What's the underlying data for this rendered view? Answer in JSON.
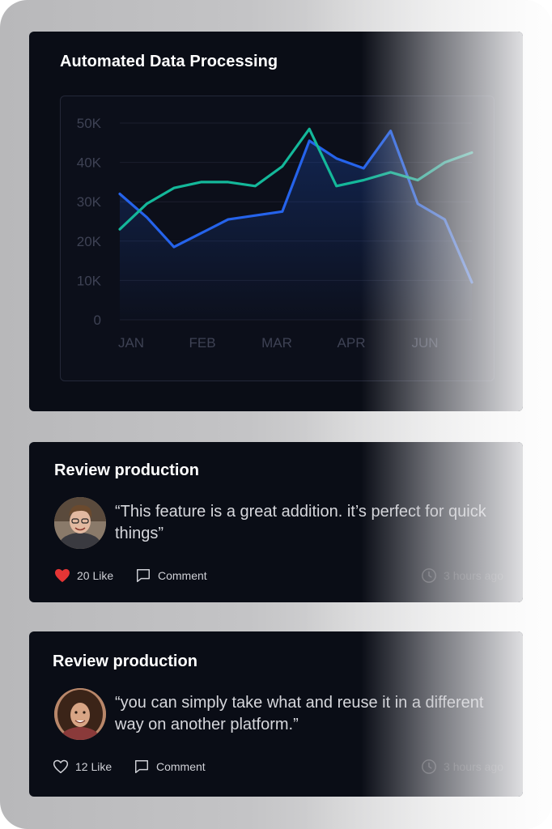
{
  "chart_card": {
    "title": "Automated Data Processing"
  },
  "chart_data": {
    "type": "line",
    "title": "Automated Data Processing",
    "xlabel": "",
    "ylabel": "",
    "x_ticks": [
      "JAN",
      "FEB",
      "MAR",
      "APR",
      "JUN"
    ],
    "y_ticks": [
      "50K",
      "40K",
      "30K",
      "20K",
      "10K",
      "0"
    ],
    "ylim": [
      0,
      50000
    ],
    "grid": true,
    "legend": "none",
    "x": [
      0,
      0.5,
      1,
      1.5,
      2,
      2.5,
      3,
      3.5,
      4,
      4.5,
      5,
      5.5,
      6,
      6.5
    ],
    "series": [
      {
        "color": "#2563eb",
        "values": [
          32000,
          26000,
          18500,
          22000,
          25500,
          26500,
          27500,
          45500,
          41000,
          38500,
          48000,
          29500,
          25500,
          9500
        ]
      },
      {
        "color": "#14b89a",
        "values": [
          23000,
          29500,
          33500,
          35000,
          35000,
          34000,
          39000,
          48500,
          34000,
          35500,
          37500,
          35500,
          40000,
          42500
        ]
      }
    ]
  },
  "reviews": [
    {
      "title": "Review production",
      "quote": "“This feature is a great addition. it’s perfect for quick things”",
      "likes": "20 Like",
      "liked": true,
      "comment": "Comment",
      "time": "3 hours ago"
    },
    {
      "title": "Review production",
      "quote": "“you can simply take what  and reuse it in a different way on another platform.”",
      "likes": "12 Like",
      "liked": false,
      "comment": "Comment",
      "time": "3 hours ago"
    }
  ],
  "colors": {
    "card_bg": "#0a0d16",
    "heart_red": "#e53535",
    "line_blue": "#2563eb",
    "line_green": "#14b89a"
  }
}
